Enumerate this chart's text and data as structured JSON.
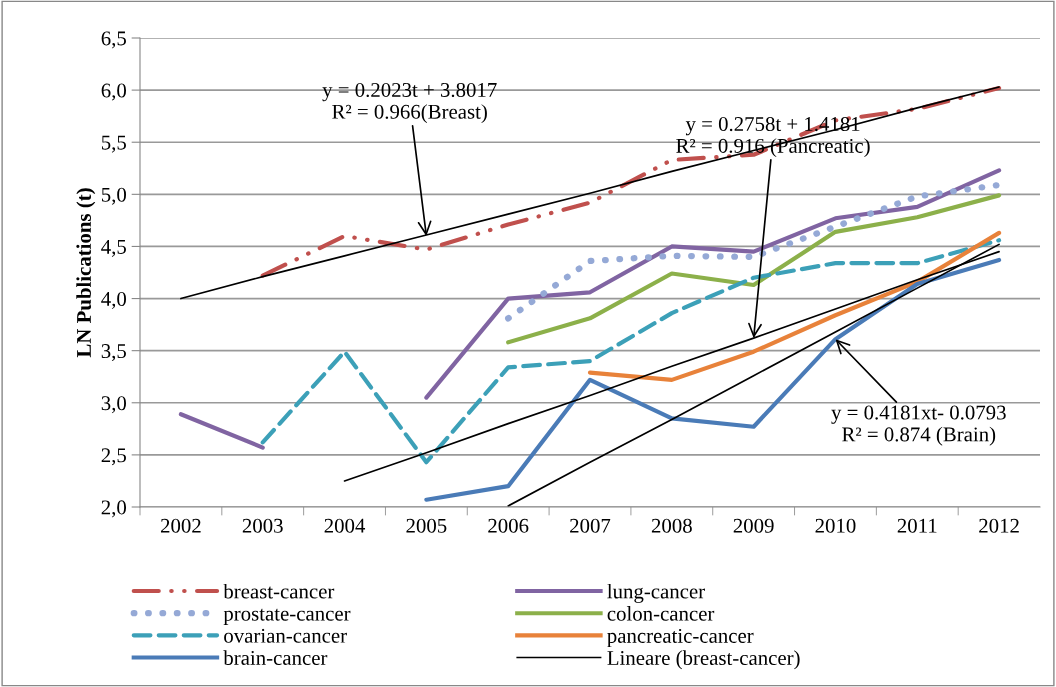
{
  "chart_data": {
    "type": "line",
    "ylabel": "LN Publications (t)",
    "categories": [
      "2002",
      "2003",
      "2004",
      "2005",
      "2006",
      "2007",
      "2008",
      "2009",
      "2010",
      "2011",
      "2012"
    ],
    "ylim": [
      2.0,
      6.5
    ],
    "yticks": [
      {
        "value": 2.0,
        "label": "2,0"
      },
      {
        "value": 2.5,
        "label": "2,5"
      },
      {
        "value": 3.0,
        "label": "3,0"
      },
      {
        "value": 3.5,
        "label": "3,5"
      },
      {
        "value": 4.0,
        "label": "4,0"
      },
      {
        "value": 4.5,
        "label": "4,5"
      },
      {
        "value": 5.0,
        "label": "5,0"
      },
      {
        "value": 5.5,
        "label": "5,5"
      },
      {
        "value": 6.0,
        "label": "6,0"
      },
      {
        "value": 6.5,
        "label": "6,5"
      }
    ],
    "grid": "y",
    "legend": "bottom",
    "series": [
      {
        "name": "breast-cancer",
        "color": "#c0504d",
        "line_style": "dashdot",
        "values": [
          null,
          4.22,
          4.6,
          4.47,
          4.71,
          4.92,
          5.33,
          5.38,
          5.71,
          5.82,
          6.02
        ]
      },
      {
        "name": "lung-cancer",
        "color": "#8064a2",
        "line_style": "solid",
        "values": [
          2.89,
          2.57,
          null,
          3.05,
          4.0,
          4.06,
          4.5,
          4.45,
          4.77,
          4.88,
          5.23
        ]
      },
      {
        "name": "prostate-cancer",
        "color": "#95a9d6",
        "line_style": "dotted",
        "values": [
          null,
          null,
          null,
          null,
          3.81,
          4.36,
          4.41,
          4.4,
          4.69,
          4.98,
          5.09
        ]
      },
      {
        "name": "colon-cancer",
        "color": "#8cb04a",
        "line_style": "solid",
        "values": [
          null,
          null,
          null,
          null,
          3.58,
          3.81,
          4.24,
          4.13,
          4.64,
          4.78,
          4.99
        ]
      },
      {
        "name": "ovarian-cancer",
        "color": "#3ca0b8",
        "line_style": "dashed",
        "values": [
          null,
          2.62,
          3.49,
          2.43,
          3.34,
          3.4,
          3.86,
          4.2,
          4.34,
          4.34,
          4.56
        ]
      },
      {
        "name": "pancreatic-cancer",
        "color": "#e8823a",
        "line_style": "solid",
        "values": [
          null,
          null,
          null,
          null,
          null,
          3.29,
          3.22,
          3.49,
          3.84,
          4.16,
          4.63
        ]
      },
      {
        "name": "brain-cancer",
        "color": "#4a7bb7",
        "line_style": "solid",
        "values": [
          null,
          null,
          null,
          2.07,
          2.2,
          3.22,
          2.85,
          2.77,
          3.61,
          4.14,
          4.37
        ]
      },
      {
        "name": "Lineare (breast-cancer)",
        "color": "#000000",
        "line_style": "solid",
        "values": [
          4.0,
          4.21,
          4.41,
          4.61,
          4.81,
          5.01,
          5.22,
          5.42,
          5.62,
          5.83,
          6.03
        ]
      },
      {
        "color": "#000000",
        "line_style": "solid",
        "values": [
          null,
          null,
          2.25,
          2.52,
          2.8,
          3.07,
          3.35,
          3.62,
          3.9,
          4.18,
          4.45
        ]
      },
      {
        "color": "#000000",
        "line_style": "solid",
        "values": [
          null,
          null,
          null,
          null,
          2.01,
          2.43,
          2.84,
          3.26,
          3.68,
          4.1,
          4.52
        ]
      }
    ],
    "annotations": [
      {
        "text": "y = 0.2023t + 3.8017\nR² = 0.966(Breast)",
        "x": "2005",
        "y": 4.6
      },
      {
        "text": "y = 0.2758t + 1.4181\nR² = 0.916 (Pancreatic)",
        "x": "2009",
        "y": 3.62
      },
      {
        "text": "y = 0.4181xt- 0.0793\nR² = 0.874 (Brain)",
        "x": "2010",
        "y": 3.61
      }
    ]
  }
}
